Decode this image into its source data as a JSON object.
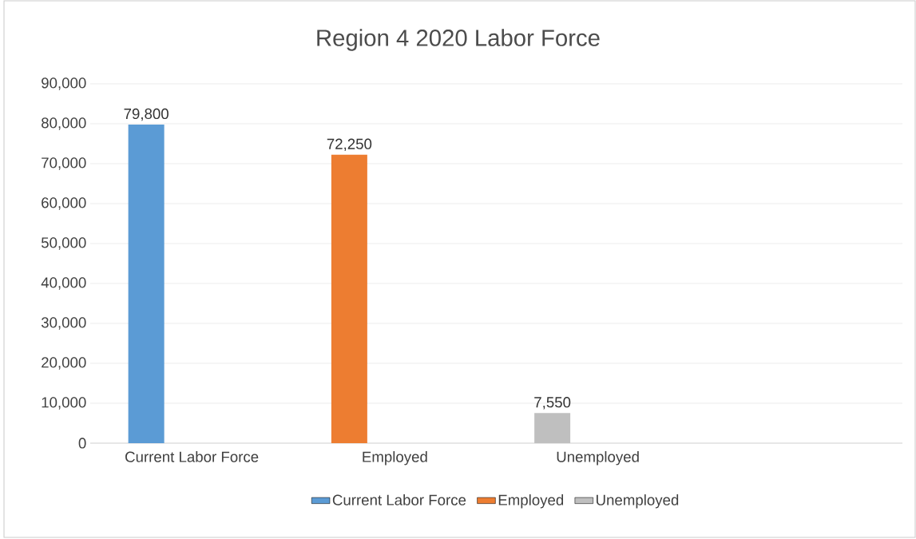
{
  "chart_data": {
    "type": "bar",
    "title": "Region 4  2020 Labor Force",
    "categories": [
      "Current Labor Force",
      "Employed",
      "Unemployed",
      null
    ],
    "series": [
      {
        "name": "Current Labor Force",
        "color": "#5b9bd5",
        "values": [
          79800,
          null,
          null,
          null
        ],
        "value_labels": [
          "79,800",
          null,
          null,
          null
        ]
      },
      {
        "name": "Employed",
        "color": "#ed7d31",
        "values": [
          null,
          72250,
          null,
          null
        ],
        "value_labels": [
          null,
          "72,250",
          null,
          null
        ]
      },
      {
        "name": "Unemployed",
        "color": "#bfbfbf",
        "values": [
          null,
          null,
          7550,
          null
        ],
        "value_labels": [
          null,
          null,
          "7,550",
          null
        ]
      }
    ],
    "ylim": [
      0,
      90000
    ],
    "yticks": [
      {
        "value": 0,
        "label": "0"
      },
      {
        "value": 10000,
        "label": "10,000"
      },
      {
        "value": 20000,
        "label": "20,000"
      },
      {
        "value": 30000,
        "label": "30,000"
      },
      {
        "value": 40000,
        "label": "40,000"
      },
      {
        "value": 50000,
        "label": "50,000"
      },
      {
        "value": 60000,
        "label": "60,000"
      },
      {
        "value": 70000,
        "label": "70,000"
      },
      {
        "value": 80000,
        "label": "80,000"
      },
      {
        "value": 90000,
        "label": "90,000"
      }
    ],
    "grid": "y",
    "legend": "bottom"
  }
}
